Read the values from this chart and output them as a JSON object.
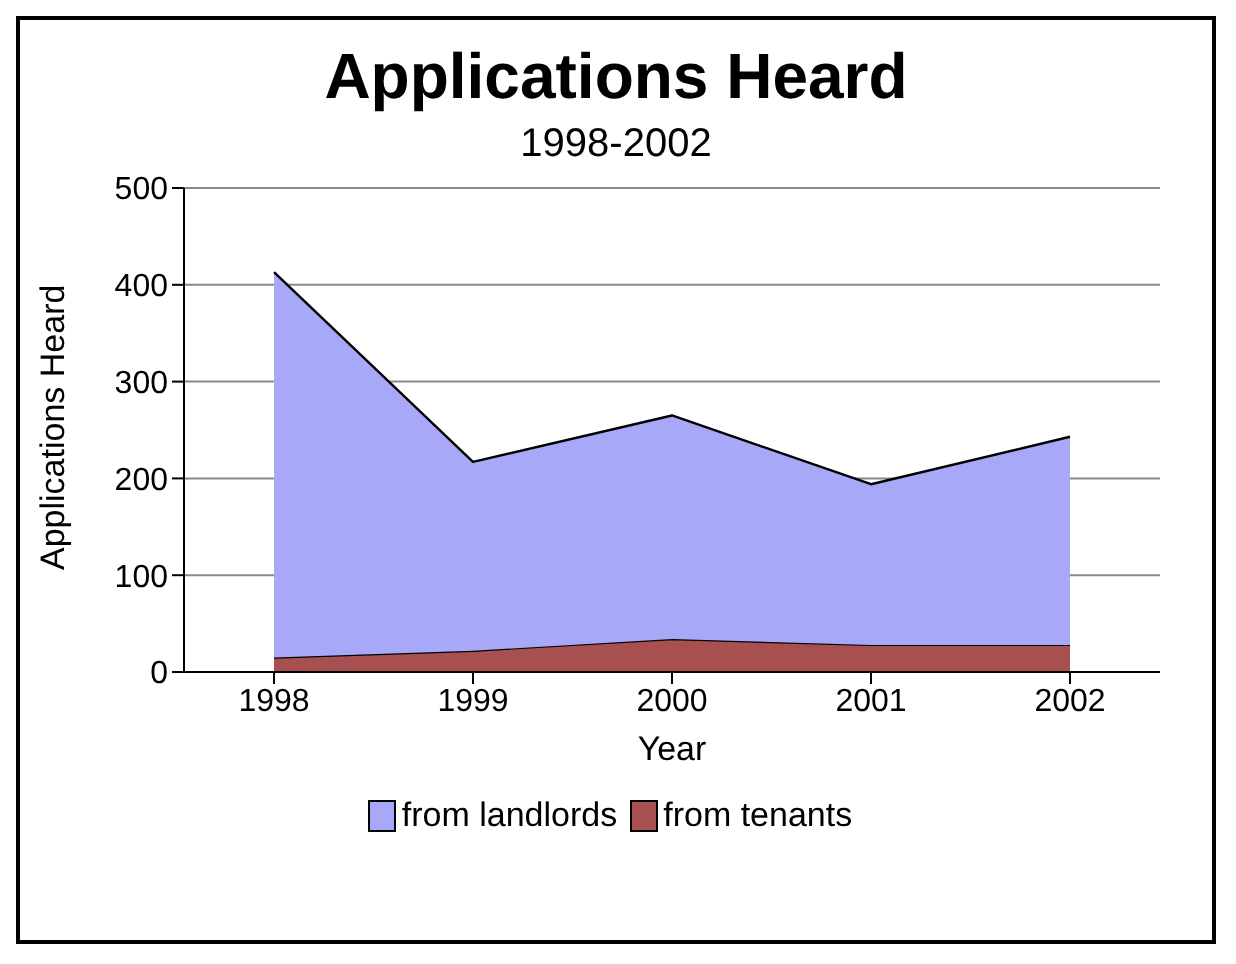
{
  "chart_data": {
    "type": "area",
    "stacked": true,
    "title": "Applications Heard",
    "subtitle": "1998-2002",
    "xlabel": "Year",
    "ylabel": "Applications Heard",
    "categories": [
      "1998",
      "1999",
      "2000",
      "2001",
      "2002"
    ],
    "series": [
      {
        "name": "from tenants",
        "color": "#a85050",
        "values": [
          15,
          22,
          34,
          28,
          28
        ]
      },
      {
        "name": "from landlords",
        "color": "#a8a8f8",
        "values": [
          398,
          195,
          231,
          166,
          215
        ]
      }
    ],
    "ylim": [
      0,
      500
    ],
    "yticks": [
      0,
      100,
      200,
      300,
      400,
      500
    ],
    "grid": "y",
    "legend": "bottom"
  }
}
